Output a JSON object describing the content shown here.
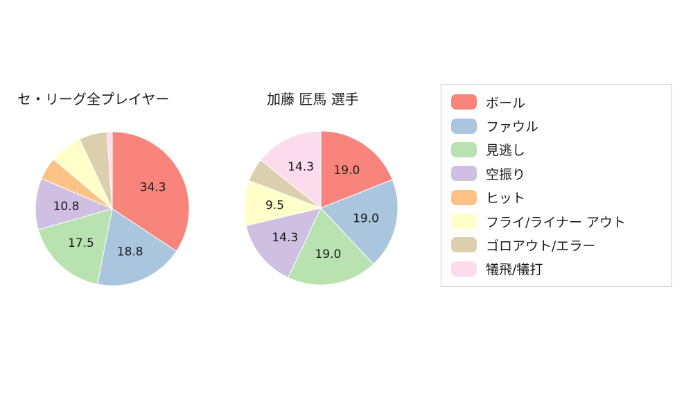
{
  "page": {
    "background": "#ffffff"
  },
  "chart_data": [
    {
      "type": "pie",
      "title": "セ・リーグ全プレイヤー",
      "start": "top",
      "direction": "clockwise",
      "categories": [
        "ボール",
        "ファウル",
        "見逃し",
        "空振り",
        "ヒット",
        "フライ/ライナー アウト",
        "ゴロアウト/エラー",
        "犠飛/犠打"
      ],
      "values": [
        34.3,
        18.8,
        17.5,
        10.8,
        4.7,
        6.9,
        5.9,
        1.1
      ],
      "data_labels": [
        "34.3",
        "18.8",
        "17.5",
        "10.8",
        "",
        "",
        "",
        ""
      ],
      "colors": [
        "#f8847b",
        "#a9c6de",
        "#b9e2b1",
        "#cfc0e2",
        "#fdc286",
        "#ffffc9",
        "#dbcfae",
        "#fcdcec"
      ]
    },
    {
      "type": "pie",
      "title": "加藤 匠馬  選手",
      "start": "top",
      "direction": "clockwise",
      "categories": [
        "ボール",
        "ファウル",
        "見逃し",
        "空振り",
        "ヒット",
        "フライ/ライナー アウト",
        "ゴロアウト/エラー",
        "犠飛/犠打"
      ],
      "values": [
        19.0,
        19.0,
        19.0,
        14.3,
        0,
        9.5,
        4.9,
        14.3
      ],
      "data_labels": [
        "19.0",
        "19.0",
        "19.0",
        "14.3",
        "",
        "9.5",
        "",
        "14.3"
      ],
      "colors": [
        "#f8847b",
        "#a9c6de",
        "#b9e2b1",
        "#cfc0e2",
        "#fdc286",
        "#ffffc9",
        "#dbcfae",
        "#fcdcec"
      ]
    }
  ],
  "legend": {
    "items": [
      {
        "label": "ボール",
        "color": "#f8847b"
      },
      {
        "label": "ファウル",
        "color": "#a9c6de"
      },
      {
        "label": "見逃し",
        "color": "#b9e2b1"
      },
      {
        "label": "空振り",
        "color": "#cfc0e2"
      },
      {
        "label": "ヒット",
        "color": "#fdc286"
      },
      {
        "label": "フライ/ライナー アウト",
        "color": "#ffffc9"
      },
      {
        "label": "ゴロアウト/エラー",
        "color": "#dbcfae"
      },
      {
        "label": "犠飛/犠打",
        "color": "#fcdcec"
      }
    ]
  }
}
